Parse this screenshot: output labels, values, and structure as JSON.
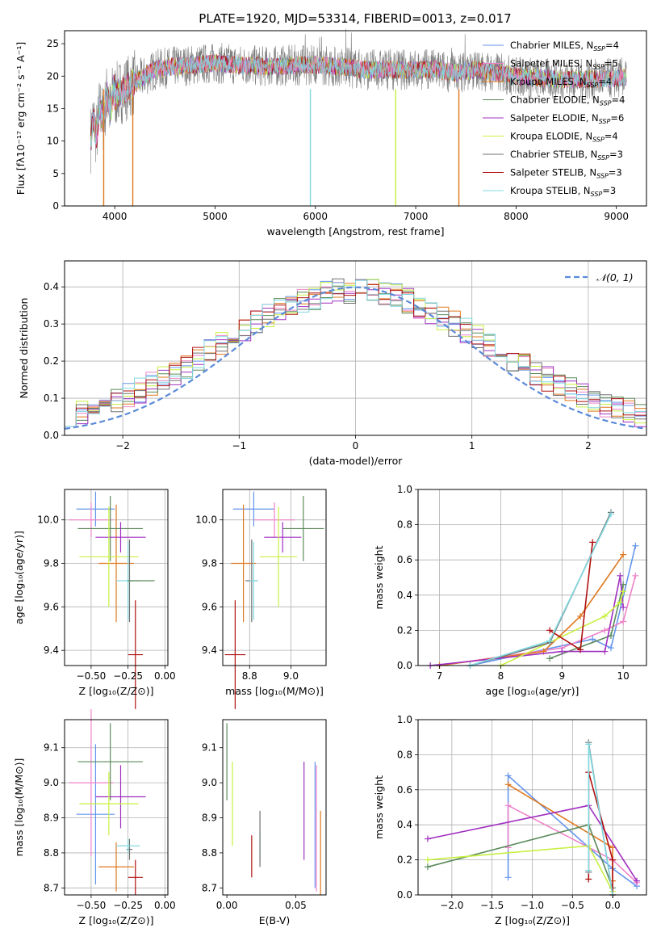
{
  "figure_title": "PLATE=1920, MJD=53314, FIBERID=0013, z=0.017",
  "colors": {
    "Chabrier MILES": "#6495ed",
    "Salpeter MILES": "#ee82c8",
    "Kroupa MILES": "#e07820",
    "Chabrier ELODIE": "#5a8a5a",
    "Salpeter ELODIE": "#a030c0",
    "Kroupa ELODIE": "#c8f040",
    "Chabrier STELIB": "#707070",
    "Salpeter STELIB": "#b01010",
    "Kroupa STELIB": "#80d8e0",
    "normal": "#5b8ad8"
  },
  "chart_data": [
    {
      "id": "spectrum",
      "type": "line",
      "title": "PLATE=1920, MJD=53314, FIBERID=0013, z=0.017",
      "xlabel": "wavelength [Angstrom, rest frame]",
      "ylabel": "Flux [fλ10⁻¹⁷ erg cm⁻² s⁻¹ A⁻¹]",
      "xlim": [
        3500,
        9300
      ],
      "ylim": [
        0,
        27
      ],
      "xticks": [
        4000,
        5000,
        6000,
        7000,
        8000,
        9000
      ],
      "yticks": [
        0,
        5,
        10,
        15,
        20,
        25
      ],
      "legend_loc": "upper right",
      "continuum": {
        "x": [
          3760,
          3900,
          4000,
          4200,
          4400,
          4600,
          5000,
          5500,
          6000,
          6500,
          7000,
          7200,
          7400,
          7600,
          7800,
          8000,
          8400,
          8800,
          9100
        ],
        "y": [
          11,
          15,
          17,
          19,
          21,
          21.5,
          22,
          21.5,
          21.8,
          21,
          21,
          21,
          20.5,
          21,
          20.5,
          20,
          19.5,
          19.5,
          19.8
        ]
      },
      "series": [
        {
          "name": "Chabrier MILES",
          "nssp": "4"
        },
        {
          "name": "Salpeter MILES",
          "nssp": "5"
        },
        {
          "name": "Kroupa MILES",
          "nssp": "4"
        },
        {
          "name": "Chabrier ELODIE",
          "nssp": "4"
        },
        {
          "name": "Salpeter ELODIE",
          "nssp": "6"
        },
        {
          "name": "Kroupa ELODIE",
          "nssp": "4"
        },
        {
          "name": "Chabrier STELIB",
          "nssp": "3"
        },
        {
          "name": "Salpeter STELIB",
          "nssp": "3"
        },
        {
          "name": "Kroupa STELIB",
          "nssp": "3"
        }
      ],
      "dips": [
        {
          "series": "Kroupa MILES",
          "x": 3890
        },
        {
          "series": "Kroupa MILES",
          "x": 4180
        },
        {
          "series": "Kroupa STELIB",
          "x": 5950
        },
        {
          "series": "Kroupa ELODIE",
          "x": 6800
        },
        {
          "series": "Kroupa MILES",
          "x": 7430
        }
      ]
    },
    {
      "id": "residuals",
      "type": "step",
      "xlabel": "(data-model)/error",
      "ylabel": "Normed distribution",
      "xlim": [
        -2.5,
        2.5
      ],
      "ylim": [
        0,
        0.47
      ],
      "xticks": [
        -2,
        -1,
        0,
        1,
        2
      ],
      "yticks": [
        0.0,
        0.1,
        0.2,
        0.3,
        0.4
      ],
      "grid": true,
      "legend_loc": "upper right",
      "reference": {
        "name": "𝒩(0, 1)",
        "style": "dashed"
      }
    },
    {
      "id": "age-vs-Z",
      "type": "errorbar",
      "xlabel": "Z [log₁₀(Z/Z⊙)]",
      "ylabel": "age  [log₁₀(age/yr)]",
      "xlim": [
        -0.68,
        0.02
      ],
      "ylim": [
        9.33,
        10.14
      ],
      "xticks": [
        -0.5,
        -0.25,
        0.0
      ],
      "xticklabels": [
        "−0.50",
        "−0.25",
        "0.00"
      ],
      "yticks": [
        9.4,
        9.6,
        9.8,
        10.0
      ],
      "grid": true,
      "points": [
        {
          "series": "Chabrier MILES",
          "x": -0.47,
          "xerr": 0.13,
          "y": 10.05,
          "yerr": 0.08
        },
        {
          "series": "Salpeter MILES",
          "x": -0.5,
          "xerr": 0.15,
          "y": 10.0,
          "yerr": 0.08
        },
        {
          "series": "Kroupa MILES",
          "x": -0.33,
          "xerr": 0.12,
          "y": 9.8,
          "yerr": 0.27
        },
        {
          "series": "Chabrier ELODIE",
          "x": -0.37,
          "xerr": 0.22,
          "y": 9.96,
          "yerr": 0.15
        },
        {
          "series": "Salpeter ELODIE",
          "x": -0.3,
          "xerr": 0.17,
          "y": 9.92,
          "yerr": 0.07
        },
        {
          "series": "Kroupa ELODIE",
          "x": -0.38,
          "xerr": 0.2,
          "y": 9.83,
          "yerr": 0.23
        },
        {
          "series": "Chabrier STELIB",
          "x": -0.24,
          "xerr": 0.02,
          "y": 9.72,
          "yerr": 0.19
        },
        {
          "series": "Salpeter STELIB",
          "x": -0.2,
          "xerr": 0.05,
          "y": 9.38,
          "yerr": 0.25
        },
        {
          "series": "Kroupa STELIB",
          "x": -0.25,
          "xerr": 0.08,
          "y": 9.72,
          "yerr": 0.18
        },
        {
          "series": "Chabrier ELODIE",
          "x": -0.16,
          "xerr": 0.09,
          "y": 9.72,
          "yerr": 0.0
        }
      ]
    },
    {
      "id": "age-vs-mass",
      "type": "errorbar",
      "xlabel": "mass [log₁₀(M/M⊙)]",
      "ylabel": "",
      "xlim": [
        8.67,
        9.17
      ],
      "ylim": [
        9.33,
        10.14
      ],
      "xticks": [
        8.8,
        9.0
      ],
      "xticklabels": [
        "8.8",
        "9.0"
      ],
      "yticks": [
        9.4,
        9.6,
        9.8,
        10.0
      ],
      "grid": true,
      "points": [
        {
          "series": "Chabrier MILES",
          "x": 8.82,
          "xerr": 0.1,
          "y": 10.05,
          "yerr": 0.08
        },
        {
          "series": "Salpeter MILES",
          "x": 8.92,
          "xerr": 0.1,
          "y": 10.0,
          "yerr": 0.08
        },
        {
          "series": "Kroupa MILES",
          "x": 8.77,
          "xerr": 0.06,
          "y": 9.8,
          "yerr": 0.27
        },
        {
          "series": "Chabrier ELODIE",
          "x": 9.06,
          "xerr": 0.1,
          "y": 9.96,
          "yerr": 0.15
        },
        {
          "series": "Salpeter ELODIE",
          "x": 8.96,
          "xerr": 0.09,
          "y": 9.92,
          "yerr": 0.07
        },
        {
          "series": "Kroupa ELODIE",
          "x": 8.94,
          "xerr": 0.09,
          "y": 9.83,
          "yerr": 0.23
        },
        {
          "series": "Chabrier STELIB",
          "x": 8.81,
          "xerr": 0.03,
          "y": 9.72,
          "yerr": 0.19
        },
        {
          "series": "Salpeter STELIB",
          "x": 8.73,
          "xerr": 0.05,
          "y": 9.38,
          "yerr": 0.25
        },
        {
          "series": "Kroupa STELIB",
          "x": 8.82,
          "xerr": 0.02,
          "y": 9.72,
          "yerr": 0.18
        }
      ]
    },
    {
      "id": "weight-vs-age",
      "type": "line",
      "xlabel": "age  [log₁₀(age/yr)]",
      "ylabel": "mass weight",
      "xlim": [
        6.65,
        10.38
      ],
      "ylim": [
        0,
        1.0
      ],
      "xticks": [
        7,
        8,
        9,
        10
      ],
      "yticks": [
        0.0,
        0.2,
        0.4,
        0.6,
        0.8,
        1.0
      ],
      "grid": true,
      "series": [
        {
          "name": "Chabrier MILES",
          "x": [
            7.5,
            9.5,
            9.8,
            10.2
          ],
          "y": [
            0.0,
            0.15,
            0.1,
            0.68
          ]
        },
        {
          "name": "Salpeter MILES",
          "x": [
            7.0,
            9.0,
            9.7,
            10.0,
            10.2
          ],
          "y": [
            0.0,
            0.1,
            0.2,
            0.25,
            0.51
          ]
        },
        {
          "name": "Kroupa MILES",
          "x": [
            7.0,
            8.7,
            9.3,
            10.0
          ],
          "y": [
            0.0,
            0.08,
            0.28,
            0.63
          ]
        },
        {
          "name": "Chabrier ELODIE",
          "x": [
            8.8,
            9.8,
            10.0
          ],
          "y": [
            0.04,
            0.17,
            0.46
          ]
        },
        {
          "name": "Salpeter ELODIE",
          "x": [
            6.85,
            9.0,
            9.7,
            9.95,
            10.0
          ],
          "y": [
            0.0,
            0.08,
            0.08,
            0.51,
            0.33
          ]
        },
        {
          "name": "Kroupa ELODIE",
          "x": [
            8.0,
            9.7,
            9.95,
            10.0
          ],
          "y": [
            0.0,
            0.28,
            0.36,
            0.42
          ]
        },
        {
          "name": "Chabrier STELIB",
          "x": [
            7.5,
            8.8,
            9.8
          ],
          "y": [
            0.0,
            0.13,
            0.87
          ]
        },
        {
          "name": "Salpeter STELIB",
          "x": [
            8.8,
            9.3,
            9.5
          ],
          "y": [
            0.2,
            0.09,
            0.7
          ]
        },
        {
          "name": "Kroupa STELIB",
          "x": [
            7.5,
            8.8,
            9.8
          ],
          "y": [
            0.0,
            0.14,
            0.86
          ]
        }
      ]
    },
    {
      "id": "mass-vs-Z",
      "type": "errorbar",
      "xlabel": "Z [log₁₀(Z/Z⊙)]",
      "ylabel": "mass [log₁₀(M/M⊙)]",
      "xlim": [
        -0.68,
        0.02
      ],
      "ylim": [
        8.68,
        9.18
      ],
      "xticks": [
        -0.5,
        -0.25,
        0.0
      ],
      "xticklabels": [
        "−0.50",
        "−0.25",
        "0.00"
      ],
      "yticks": [
        8.7,
        8.8,
        8.9,
        9.0,
        9.1
      ],
      "grid": true,
      "points": [
        {
          "series": "Chabrier MILES",
          "x": -0.47,
          "xerr": 0.13,
          "y": 8.91,
          "yerr": 0.2
        },
        {
          "series": "Salpeter MILES",
          "x": -0.5,
          "xerr": 0.15,
          "y": 9.0,
          "yerr": 0.21
        },
        {
          "series": "Kroupa MILES",
          "x": -0.33,
          "xerr": 0.12,
          "y": 8.76,
          "yerr": 0.07
        },
        {
          "series": "Chabrier ELODIE",
          "x": -0.37,
          "xerr": 0.22,
          "y": 9.06,
          "yerr": 0.11
        },
        {
          "series": "Salpeter ELODIE",
          "x": -0.3,
          "xerr": 0.17,
          "y": 8.96,
          "yerr": 0.09
        },
        {
          "series": "Kroupa ELODIE",
          "x": -0.38,
          "xerr": 0.2,
          "y": 8.94,
          "yerr": 0.09
        },
        {
          "series": "Chabrier STELIB",
          "x": -0.24,
          "xerr": 0.02,
          "y": 8.81,
          "yerr": 0.03
        },
        {
          "series": "Salpeter STELIB",
          "x": -0.2,
          "xerr": 0.05,
          "y": 8.73,
          "yerr": 0.05
        },
        {
          "series": "Kroupa STELIB",
          "x": -0.25,
          "xerr": 0.08,
          "y": 8.82,
          "yerr": 0.02
        }
      ]
    },
    {
      "id": "mass-vs-ebv",
      "type": "errorbar",
      "xlabel": "E(B-V)",
      "ylabel": "",
      "xlim": [
        -0.003,
        0.072
      ],
      "ylim": [
        8.68,
        9.18
      ],
      "xticks": [
        0.0,
        0.05
      ],
      "xticklabels": [
        "0.00",
        "0.05"
      ],
      "yticks": [
        8.7,
        8.8,
        8.9,
        9.0,
        9.1
      ],
      "grid": false,
      "points": [
        {
          "series": "Chabrier ELODIE",
          "x": 0.0,
          "xerr": 0.0,
          "y": 9.06,
          "yerr": 0.11
        },
        {
          "series": "Kroupa ELODIE",
          "x": 0.004,
          "xerr": 0.0,
          "y": 8.94,
          "yerr": 0.12
        },
        {
          "series": "Salpeter STELIB",
          "x": 0.018,
          "xerr": 0.0,
          "y": 8.79,
          "yerr": 0.06
        },
        {
          "series": "Kroupa STELIB",
          "x": 0.024,
          "xerr": 0.0,
          "y": 8.82,
          "yerr": 0.04
        },
        {
          "series": "Chabrier STELIB",
          "x": 0.024,
          "xerr": 0.0,
          "y": 8.84,
          "yerr": 0.08
        },
        {
          "series": "Salpeter ELODIE",
          "x": 0.056,
          "xerr": 0.0,
          "y": 8.92,
          "yerr": 0.14
        },
        {
          "series": "Chabrier MILES",
          "x": 0.064,
          "xerr": 0.0,
          "y": 8.88,
          "yerr": 0.18
        },
        {
          "series": "Salpeter MILES",
          "x": 0.065,
          "xerr": 0.0,
          "y": 8.87,
          "yerr": 0.18
        },
        {
          "series": "Kroupa MILES",
          "x": 0.068,
          "xerr": 0.0,
          "y": 8.8,
          "yerr": 0.12
        }
      ]
    },
    {
      "id": "weight-vs-Z",
      "type": "line",
      "xlabel": "Z [log₁₀(Z/Z⊙)]",
      "ylabel": "mass weight",
      "xlim": [
        -2.42,
        0.42
      ],
      "ylim": [
        0,
        1.0
      ],
      "xticks": [
        -2.0,
        -1.5,
        -1.0,
        -0.5,
        0.0
      ],
      "xticklabels": [
        "−2.0",
        "−1.5",
        "−1.0",
        "−0.5",
        "0.0"
      ],
      "yticks": [
        0.0,
        0.2,
        0.4,
        0.6,
        0.8,
        1.0
      ],
      "grid": true,
      "series": [
        {
          "name": "Chabrier MILES",
          "x": [
            -1.3,
            -1.3,
            0.0,
            0.3
          ],
          "y": [
            0.1,
            0.68,
            0.15,
            0.05
          ]
        },
        {
          "name": "Salpeter MILES",
          "x": [
            -1.3,
            -1.3,
            0.0,
            0.3
          ],
          "y": [
            0.27,
            0.51,
            0.2,
            0.07
          ]
        },
        {
          "name": "Kroupa MILES",
          "x": [
            -1.3,
            0.0,
            0.0
          ],
          "y": [
            0.63,
            0.27,
            0.08
          ]
        },
        {
          "name": "Chabrier ELODIE",
          "x": [
            -2.3,
            -0.3,
            0.0
          ],
          "y": [
            0.16,
            0.4,
            0.04
          ]
        },
        {
          "name": "Salpeter ELODIE",
          "x": [
            -2.3,
            -0.3,
            0.3
          ],
          "y": [
            0.32,
            0.51,
            0.08
          ]
        },
        {
          "name": "Kroupa ELODIE",
          "x": [
            -2.3,
            -0.3,
            0.0
          ],
          "y": [
            0.2,
            0.28,
            0.02
          ]
        },
        {
          "name": "Chabrier STELIB",
          "x": [
            -0.3,
            -0.3,
            0.0
          ],
          "y": [
            0.13,
            0.87,
            0.0
          ]
        },
        {
          "name": "Salpeter STELIB",
          "x": [
            -0.3,
            -0.3,
            0.0,
            0.0
          ],
          "y": [
            0.09,
            0.7,
            0.2,
            0.0
          ]
        },
        {
          "name": "Kroupa STELIB",
          "x": [
            -0.3,
            -0.3,
            0.0
          ],
          "y": [
            0.14,
            0.86,
            0.0
          ]
        }
      ]
    }
  ]
}
